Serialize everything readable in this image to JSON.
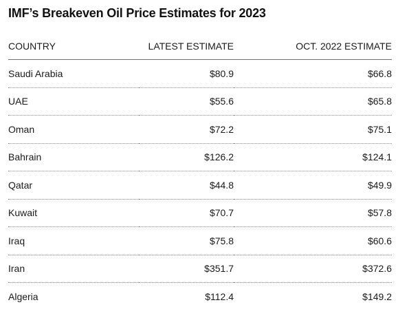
{
  "chart_data": {
    "type": "table",
    "title": "IMF’s Breakeven Oil Price Estimates for 2023",
    "columns": [
      "COUNTRY",
      "LATEST ESTIMATE",
      "OCT. 2022 ESTIMATE"
    ],
    "rows": [
      {
        "country": "Saudi Arabia",
        "latest": "$80.9",
        "oct2022": "$66.8"
      },
      {
        "country": "UAE",
        "latest": "$55.6",
        "oct2022": "$65.8"
      },
      {
        "country": "Oman",
        "latest": "$72.2",
        "oct2022": "$75.1"
      },
      {
        "country": "Bahrain",
        "latest": "$126.2",
        "oct2022": "$124.1"
      },
      {
        "country": "Qatar",
        "latest": "$44.8",
        "oct2022": "$49.9"
      },
      {
        "country": "Kuwait",
        "latest": "$70.7",
        "oct2022": "$57.8"
      },
      {
        "country": "Iraq",
        "latest": "$75.8",
        "oct2022": "$60.6"
      },
      {
        "country": "Iran",
        "latest": "$351.7",
        "oct2022": "$372.6"
      },
      {
        "country": "Algeria",
        "latest": "$112.4",
        "oct2022": "$149.2"
      }
    ]
  }
}
